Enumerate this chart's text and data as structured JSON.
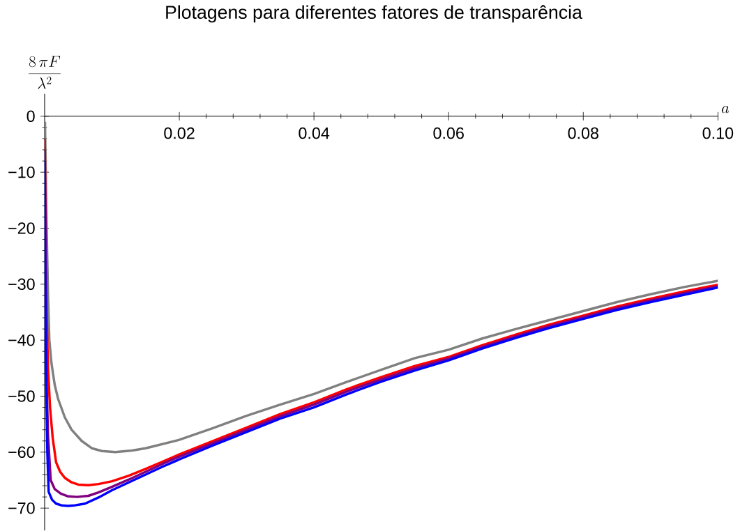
{
  "chart_data": {
    "type": "line",
    "title": "Plotagens para diferentes fatores de transparência",
    "xlabel": "a",
    "ylabel": "\\frac{8\\,\\pi F}{\\lambda^{2}}",
    "xlim": [
      0,
      0.1
    ],
    "ylim": [
      -74,
      4
    ],
    "xticks": [
      {
        "value": 0.02,
        "label": "0.02"
      },
      {
        "value": 0.04,
        "label": "0.04"
      },
      {
        "value": 0.06,
        "label": "0.06"
      },
      {
        "value": 0.08,
        "label": "0.08"
      },
      {
        "value": 0.1,
        "label": "0.10"
      }
    ],
    "yticks": [
      {
        "value": 0,
        "label": "0"
      },
      {
        "value": -10,
        "label": "−10"
      },
      {
        "value": -20,
        "label": "−20"
      },
      {
        "value": -30,
        "label": "−30"
      },
      {
        "value": -40,
        "label": "−40"
      },
      {
        "value": -50,
        "label": "−50"
      },
      {
        "value": -60,
        "label": "−60"
      },
      {
        "value": -70,
        "label": "−70"
      }
    ],
    "grid": false,
    "legend": false,
    "marker": "none",
    "line_style": "solid",
    "series": [
      {
        "color": "#808080",
        "x": [
          5e-05,
          0.0001,
          0.0002,
          0.0003,
          0.0005,
          0.0007,
          0.001,
          0.0015,
          0.002,
          0.003,
          0.004,
          0.0055,
          0.007,
          0.0085,
          0.0105,
          0.013,
          0.015,
          0.02,
          0.025,
          0.03,
          0.035,
          0.04,
          0.045,
          0.05,
          0.055,
          0.06,
          0.065,
          0.07,
          0.075,
          0.08,
          0.085,
          0.09,
          0.095,
          0.1
        ],
        "values": [
          -1,
          -5,
          -13,
          -20,
          -32,
          -40,
          -44,
          -48,
          -50.5,
          -53.8,
          -56,
          -58,
          -59.3,
          -59.8,
          -60,
          -59.7,
          -59.3,
          -57.8,
          -55.7,
          -53.5,
          -51.5,
          -49.6,
          -47.4,
          -45.3,
          -43.2,
          -41.7,
          -39.7,
          -38.0,
          -36.4,
          -34.8,
          -33.2,
          -31.8,
          -30.5,
          -29.4
        ]
      },
      {
        "color": "#ff0000",
        "x": [
          2e-05,
          0.0001,
          0.0002,
          0.0003,
          0.0005,
          0.0008,
          0.0012,
          0.0017,
          0.0023,
          0.003,
          0.004,
          0.005,
          0.0065,
          0.008,
          0.01,
          0.0125,
          0.015,
          0.0175,
          0.02,
          0.025,
          0.03,
          0.035,
          0.04,
          0.045,
          0.05,
          0.055,
          0.06,
          0.065,
          0.07,
          0.075,
          0.08,
          0.085,
          0.09,
          0.095,
          0.1
        ],
        "values": [
          -4,
          -15,
          -27,
          -35,
          -45,
          -52,
          -57.5,
          -61.8,
          -63.5,
          -64.6,
          -65.4,
          -65.8,
          -65.9,
          -65.7,
          -65.2,
          -64.2,
          -63.0,
          -61.7,
          -60.4,
          -58.0,
          -55.6,
          -53.2,
          -51.1,
          -48.7,
          -46.6,
          -44.6,
          -43.0,
          -40.9,
          -39.0,
          -37.2,
          -35.6,
          -34.0,
          -32.6,
          -31.3,
          -30.1
        ]
      },
      {
        "color": "#800080",
        "x": [
          2e-05,
          0.0001,
          0.0002,
          0.0003,
          0.0005,
          0.0009,
          0.0015,
          0.0024,
          0.0035,
          0.0048,
          0.0065,
          0.008,
          0.01,
          0.0125,
          0.015,
          0.0175,
          0.02,
          0.025,
          0.03,
          0.035,
          0.04,
          0.045,
          0.05,
          0.055,
          0.06,
          0.065,
          0.07,
          0.075,
          0.08,
          0.085,
          0.09,
          0.095,
          0.1
        ],
        "values": [
          -6,
          -22,
          -38,
          -48,
          -57,
          -65,
          -66.6,
          -67.4,
          -67.9,
          -68,
          -67.8,
          -67.2,
          -66.2,
          -64.9,
          -63.5,
          -62.1,
          -60.8,
          -58.4,
          -56.0,
          -53.6,
          -51.5,
          -49.1,
          -47.0,
          -45.0,
          -43.3,
          -41.2,
          -39.3,
          -37.5,
          -35.9,
          -34.3,
          -32.9,
          -31.6,
          -30.4
        ]
      },
      {
        "color": "#0000ff",
        "x": [
          2e-05,
          0.0001,
          0.0002,
          0.0004,
          0.0006,
          0.0011,
          0.0017,
          0.0025,
          0.0035,
          0.0045,
          0.006,
          0.008,
          0.01,
          0.0125,
          0.015,
          0.0175,
          0.02,
          0.025,
          0.03,
          0.035,
          0.04,
          0.045,
          0.05,
          0.055,
          0.06,
          0.065,
          0.07,
          0.075,
          0.08,
          0.085,
          0.09,
          0.095,
          0.1
        ],
        "values": [
          -8,
          -28,
          -45,
          -60,
          -67.1,
          -68.5,
          -69.2,
          -69.5,
          -69.6,
          -69.5,
          -69.2,
          -68.1,
          -66.8,
          -65.4,
          -64.0,
          -62.6,
          -61.3,
          -58.8,
          -56.4,
          -54.0,
          -52.0,
          -49.6,
          -47.4,
          -45.4,
          -43.6,
          -41.5,
          -39.6,
          -37.8,
          -36.2,
          -34.6,
          -33.2,
          -31.9,
          -30.6
        ]
      }
    ]
  }
}
